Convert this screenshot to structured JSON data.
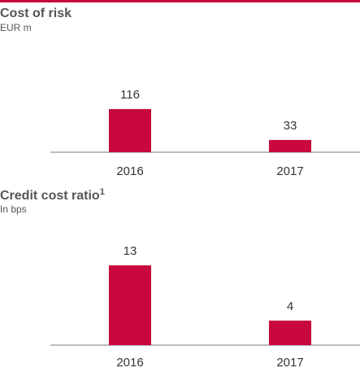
{
  "chart_data": [
    {
      "type": "bar",
      "title": "Cost of risk",
      "subtitle": "EUR m",
      "categories": [
        "2016",
        "2017"
      ],
      "values": [
        116,
        33
      ],
      "color": "#c8073f"
    },
    {
      "type": "bar",
      "title": "Credit cost ratio",
      "title_superscript": "1",
      "subtitle": "In bps",
      "categories": [
        "2016",
        "2017"
      ],
      "values": [
        13,
        4
      ],
      "color": "#c8073f"
    }
  ]
}
